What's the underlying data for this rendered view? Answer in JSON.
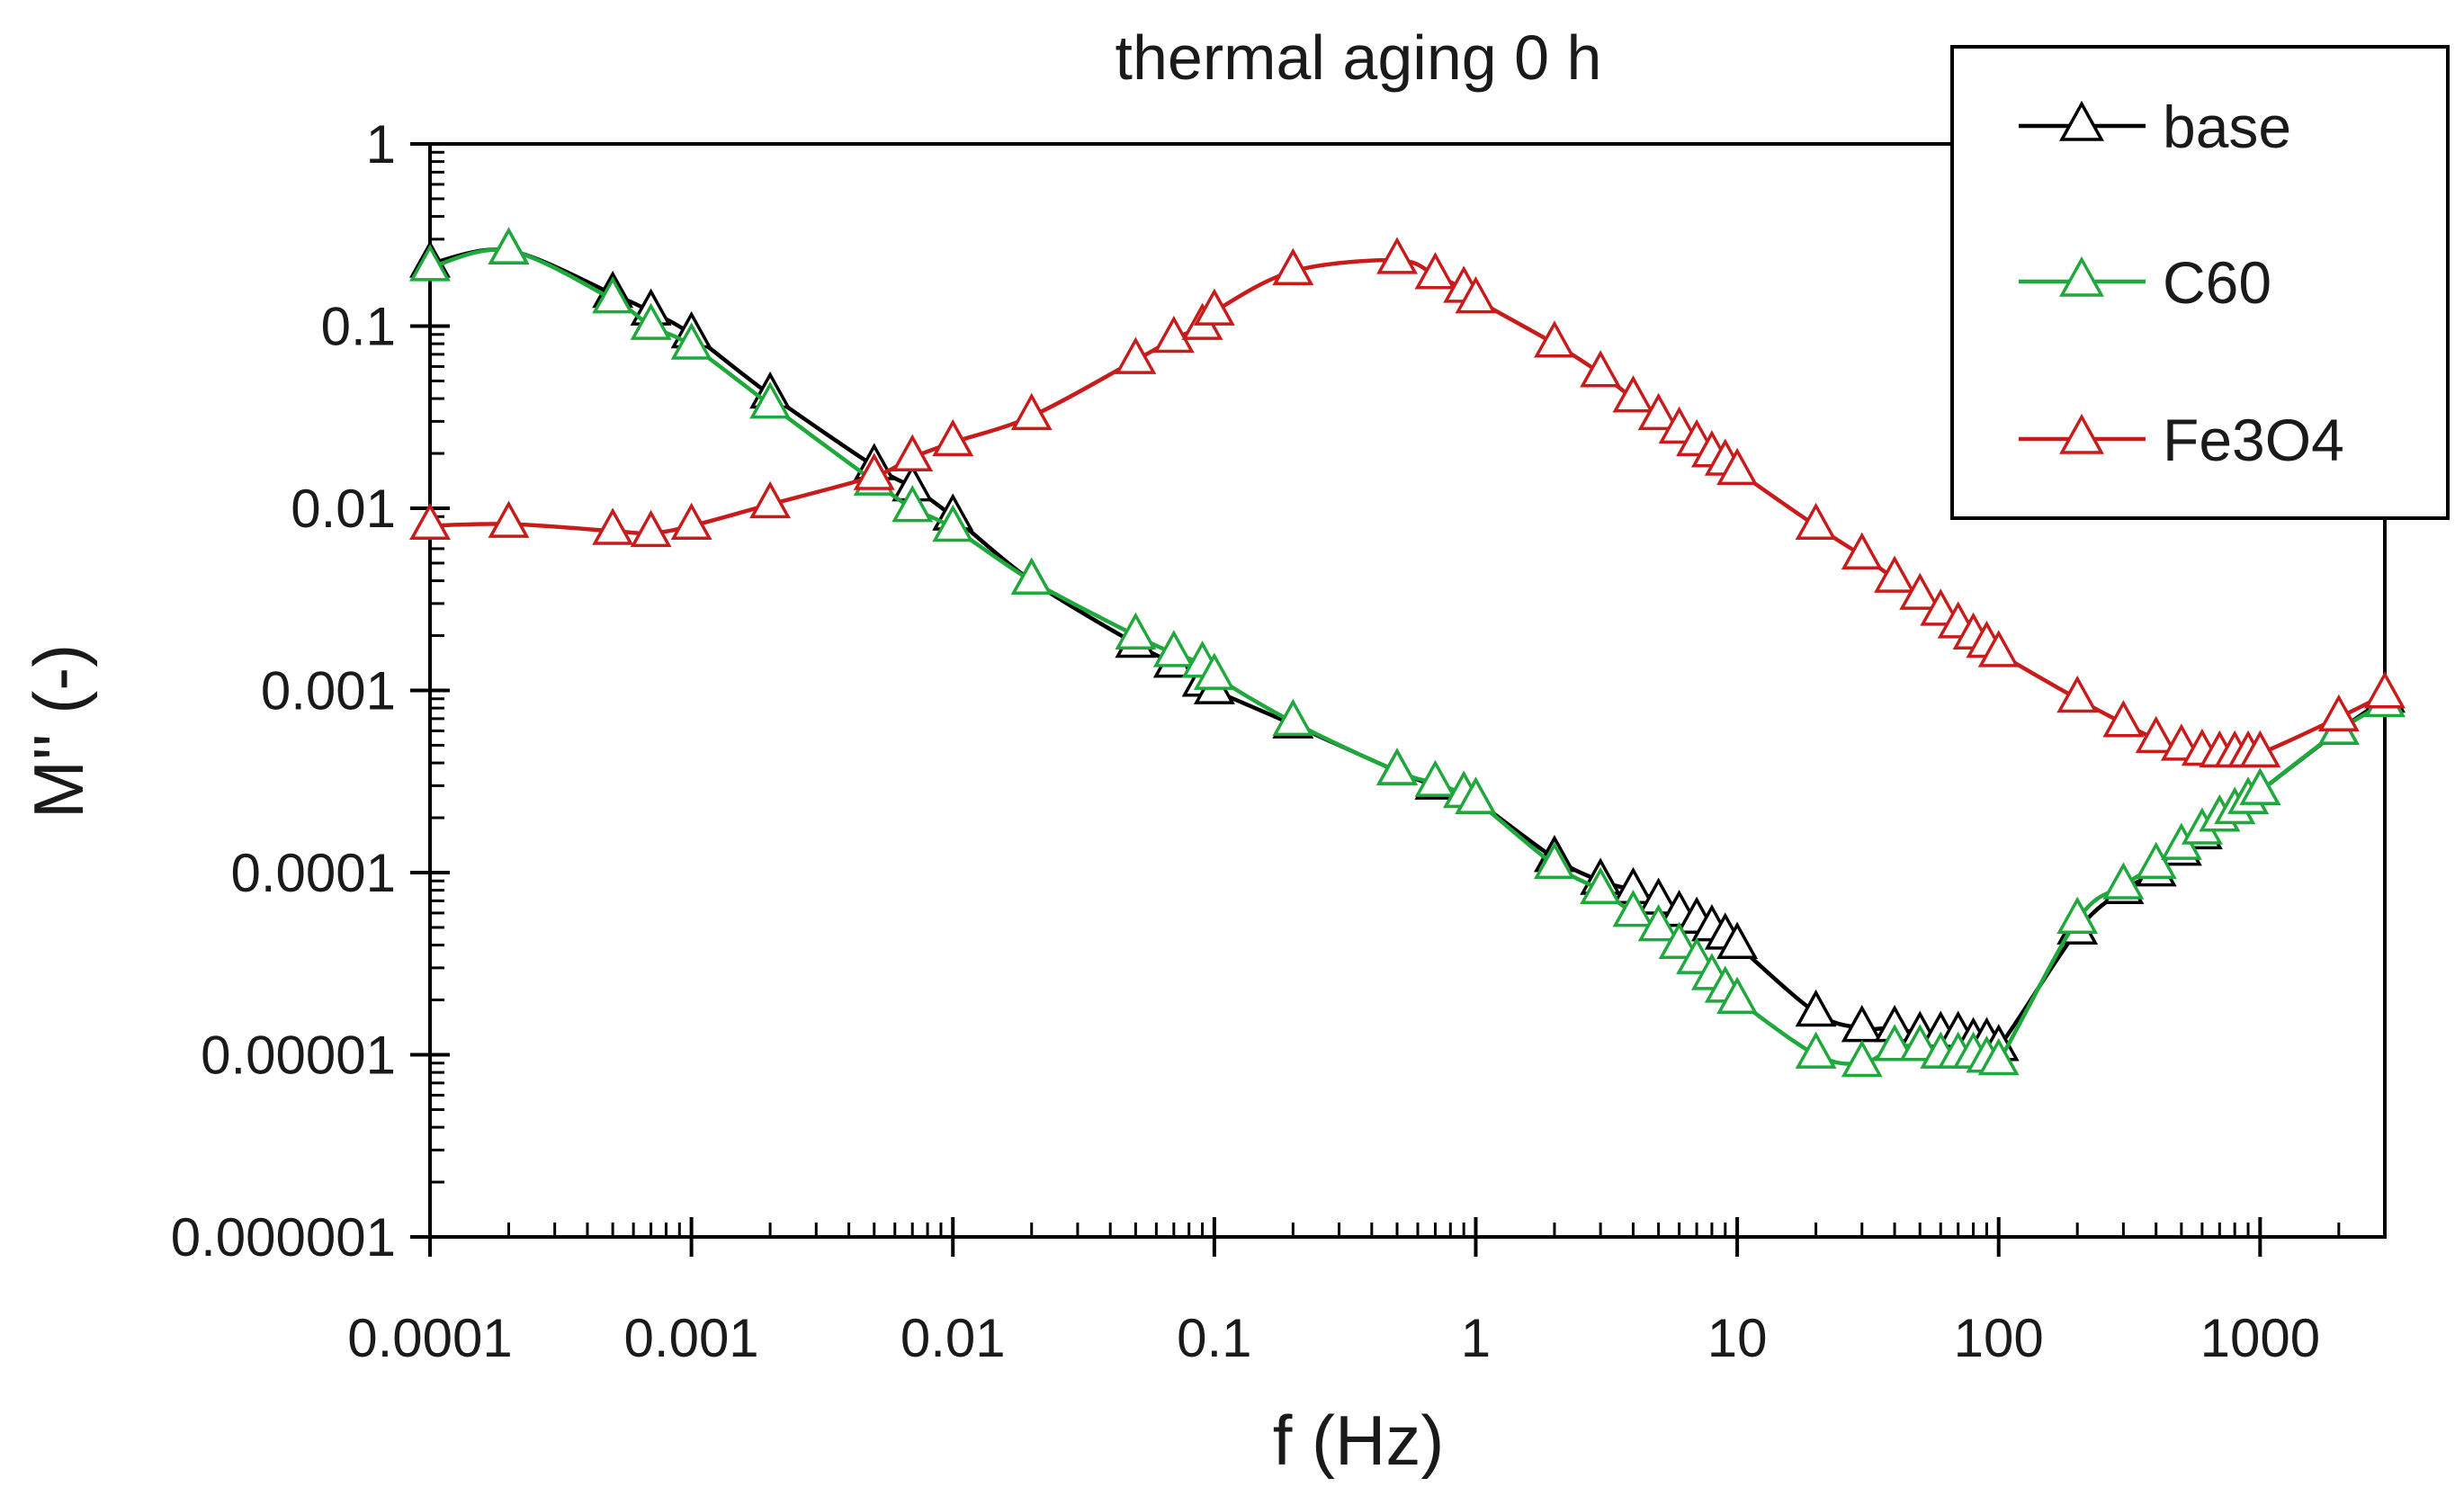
{
  "chart_data": {
    "type": "line",
    "title": "thermal aging 0 h",
    "xlabel": "f (Hz)",
    "ylabel": "M'' (-)",
    "xscale": "log",
    "yscale": "log",
    "xlim": [
      0.0001,
      3000
    ],
    "ylim": [
      1e-06,
      1
    ],
    "xticks": [
      0.0001,
      0.001,
      0.01,
      0.1,
      1,
      10,
      100,
      1000
    ],
    "xtick_labels": [
      "0.0001",
      "0.001",
      "0.01",
      "0.1",
      "1",
      "10",
      "100",
      "1000"
    ],
    "yticks": [
      1e-06,
      1e-05,
      0.0001,
      0.001,
      0.01,
      0.1,
      1
    ],
    "ytick_labels": [
      "0.000001",
      "0.00001",
      "0.0001",
      "0.001",
      "0.01",
      "0.1",
      "1"
    ],
    "grid": false,
    "legend_position": "top-right",
    "marker": "open-triangle",
    "series": [
      {
        "name": "base",
        "color": "#000000",
        "x": [
          0.0001,
          0.0002,
          0.0005,
          0.0007,
          0.001,
          0.002,
          0.005,
          0.007,
          0.01,
          0.02,
          0.05,
          0.07,
          0.09,
          0.1,
          0.2,
          0.5,
          0.7,
          0.9,
          1,
          2,
          3,
          4,
          5,
          6,
          7,
          8,
          9,
          10,
          20,
          30,
          40,
          50,
          60,
          70,
          80,
          90,
          100,
          200,
          300,
          400,
          500,
          600,
          700,
          800,
          900,
          1000,
          2000,
          3000
        ],
        "y": [
          0.22,
          0.26,
          0.15,
          0.12,
          0.09,
          0.042,
          0.017,
          0.013,
          0.009,
          0.004,
          0.0018,
          0.0014,
          0.0011,
          0.001,
          0.00065,
          0.00036,
          0.0003,
          0.00027,
          0.00025,
          0.00012,
          9e-05,
          8e-05,
          7e-05,
          6e-05,
          5.5e-05,
          5e-05,
          4.5e-05,
          4e-05,
          1.7e-05,
          1.4e-05,
          1.4e-05,
          1.3e-05,
          1.3e-05,
          1.3e-05,
          1.2e-05,
          1.2e-05,
          1.1e-05,
          4.8e-05,
          8e-05,
          0.0001,
          0.00013,
          0.00016,
          0.0002,
          0.00022,
          0.00025,
          0.00028,
          0.0006,
          0.0009
        ]
      },
      {
        "name": "C60",
        "color": "#1fa83c",
        "x": [
          0.0001,
          0.0002,
          0.0005,
          0.0007,
          0.001,
          0.002,
          0.005,
          0.007,
          0.01,
          0.02,
          0.05,
          0.07,
          0.09,
          0.1,
          0.2,
          0.5,
          0.7,
          0.9,
          1,
          2,
          3,
          4,
          5,
          6,
          7,
          8,
          9,
          10,
          20,
          30,
          40,
          50,
          60,
          70,
          80,
          90,
          100,
          200,
          300,
          400,
          500,
          600,
          700,
          800,
          900,
          1000,
          2000,
          3000
        ],
        "y": [
          0.21,
          0.26,
          0.14,
          0.1,
          0.078,
          0.037,
          0.014,
          0.01,
          0.0078,
          0.004,
          0.002,
          0.0016,
          0.0014,
          0.0012,
          0.00067,
          0.00036,
          0.00031,
          0.00027,
          0.00025,
          0.00011,
          8e-05,
          6e-05,
          5e-05,
          4e-05,
          3.3e-05,
          2.7e-05,
          2.3e-05,
          2e-05,
          1e-05,
          9e-06,
          1.1e-05,
          1.1e-05,
          1e-05,
          1e-05,
          1e-05,
          9.5e-06,
          9.2e-06,
          5.5e-05,
          8.5e-05,
          0.00011,
          0.00014,
          0.00017,
          0.0002,
          0.00022,
          0.00025,
          0.00028,
          0.0006,
          0.00085
        ]
      },
      {
        "name": "Fe3O4",
        "color": "#c81c1c",
        "x": [
          0.0001,
          0.0002,
          0.0005,
          0.0007,
          0.001,
          0.002,
          0.005,
          0.007,
          0.01,
          0.02,
          0.05,
          0.07,
          0.09,
          0.1,
          0.2,
          0.5,
          0.7,
          0.9,
          1,
          2,
          3,
          4,
          5,
          6,
          7,
          8,
          9,
          10,
          20,
          30,
          40,
          50,
          60,
          70,
          80,
          90,
          100,
          200,
          300,
          400,
          500,
          600,
          700,
          800,
          900,
          1000,
          2000,
          3000
        ],
        "y": [
          0.008,
          0.0082,
          0.0075,
          0.0073,
          0.008,
          0.0105,
          0.015,
          0.019,
          0.023,
          0.032,
          0.065,
          0.085,
          0.1,
          0.12,
          0.2,
          0.23,
          0.19,
          0.16,
          0.14,
          0.08,
          0.055,
          0.04,
          0.032,
          0.027,
          0.023,
          0.02,
          0.018,
          0.016,
          0.008,
          0.0055,
          0.0041,
          0.0033,
          0.0027,
          0.0023,
          0.002,
          0.0018,
          0.0016,
          0.0009,
          0.00066,
          0.00054,
          0.00049,
          0.00046,
          0.00045,
          0.00045,
          0.00045,
          0.00045,
          0.00071,
          0.00095
        ]
      }
    ]
  }
}
